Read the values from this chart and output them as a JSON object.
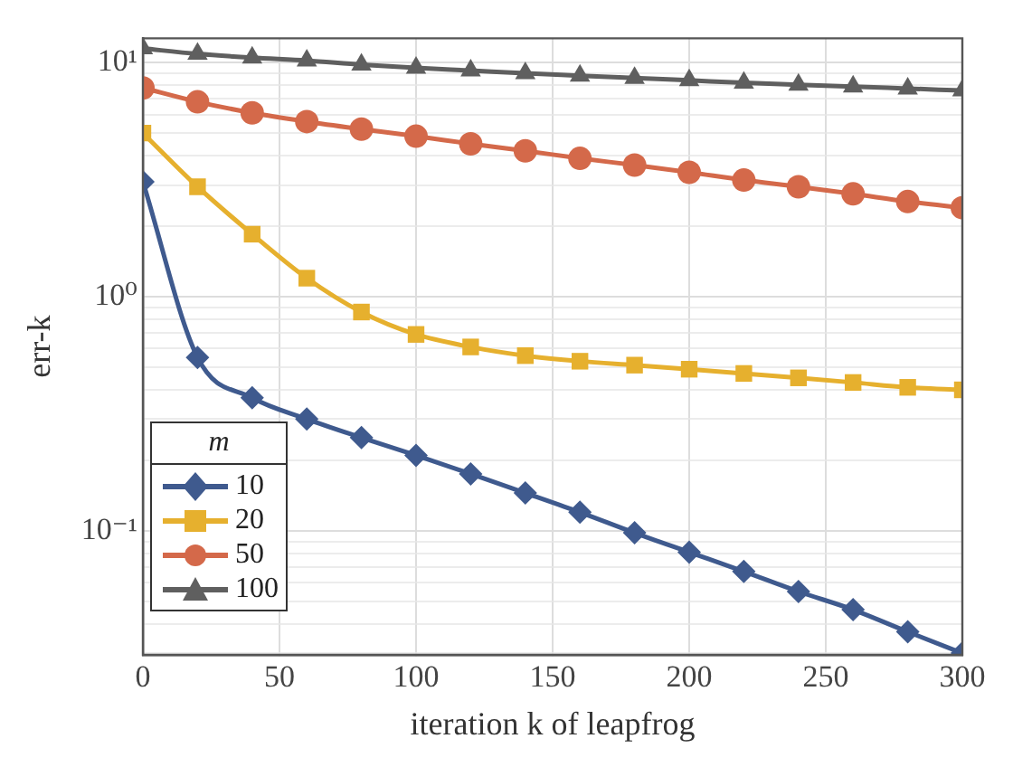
{
  "chart_data": {
    "type": "line",
    "xlabel": "iteration k of leapfrog",
    "ylabel": "err-k",
    "legend_title": "m",
    "legend": "bottom left",
    "grid": true,
    "log": "y",
    "x": [
      0,
      20,
      40,
      60,
      80,
      100,
      120,
      140,
      160,
      180,
      200,
      220,
      240,
      260,
      280,
      300
    ],
    "xlim": [
      0,
      300
    ],
    "xticks": [
      0,
      50,
      100,
      150,
      200,
      250,
      300
    ],
    "ylim": [
      0.0295,
      12.7
    ],
    "yticks": [
      {
        "value": 0.03,
        "label": null
      },
      {
        "value": 0.04,
        "label": null
      },
      {
        "value": 0.05,
        "label": null
      },
      {
        "value": 0.06,
        "label": null
      },
      {
        "value": 0.07,
        "label": null
      },
      {
        "value": 0.08,
        "label": null
      },
      {
        "value": 0.09,
        "label": null
      },
      {
        "value": 0.1,
        "label": "10⁻¹"
      },
      {
        "value": 0.2,
        "label": null
      },
      {
        "value": 0.3,
        "label": null
      },
      {
        "value": 0.4,
        "label": null
      },
      {
        "value": 0.5,
        "label": null
      },
      {
        "value": 0.6,
        "label": null
      },
      {
        "value": 0.7,
        "label": null
      },
      {
        "value": 0.8,
        "label": null
      },
      {
        "value": 0.9,
        "label": null
      },
      {
        "value": 1,
        "label": "10⁰"
      },
      {
        "value": 2,
        "label": null
      },
      {
        "value": 3,
        "label": null
      },
      {
        "value": 4,
        "label": null
      },
      {
        "value": 5,
        "label": null
      },
      {
        "value": 6,
        "label": null
      },
      {
        "value": 7,
        "label": null
      },
      {
        "value": 8,
        "label": null
      },
      {
        "value": 9,
        "label": null
      },
      {
        "value": 10,
        "label": "10¹"
      }
    ],
    "series": [
      {
        "name": "10",
        "color": "#3f5a8e",
        "marker": "diamond",
        "values": [
          3.1,
          0.55,
          0.37,
          0.3,
          0.25,
          0.21,
          0.175,
          0.145,
          0.12,
          0.098,
          0.081,
          0.067,
          0.055,
          0.046,
          0.037,
          0.03
        ]
      },
      {
        "name": "20",
        "color": "#e6b02e",
        "marker": "square",
        "values": [
          5.0,
          2.95,
          1.85,
          1.2,
          0.86,
          0.69,
          0.61,
          0.56,
          0.53,
          0.51,
          0.49,
          0.47,
          0.45,
          0.43,
          0.41,
          0.4
        ]
      },
      {
        "name": "50",
        "color": "#d4694a",
        "marker": "circle",
        "values": [
          7.8,
          6.8,
          6.1,
          5.6,
          5.2,
          4.85,
          4.5,
          4.2,
          3.9,
          3.65,
          3.4,
          3.15,
          2.95,
          2.75,
          2.55,
          2.4
        ]
      },
      {
        "name": "100",
        "color": "#5f5f5f",
        "marker": "triangle",
        "values": [
          11.5,
          10.9,
          10.5,
          10.2,
          9.8,
          9.5,
          9.25,
          9.0,
          8.8,
          8.6,
          8.4,
          8.2,
          8.05,
          7.9,
          7.75,
          7.6
        ]
      }
    ]
  }
}
